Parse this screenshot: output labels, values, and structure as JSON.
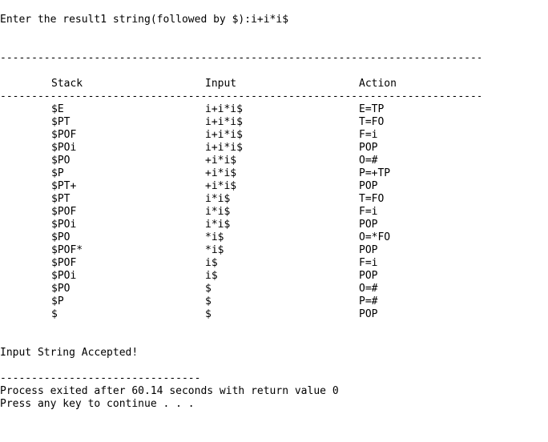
{
  "prompt_line": "Enter the result1 string(followed by $):i+i*i$",
  "separator_long": "-----------------------------------------------------------------------------------",
  "separator_short": "--------------------------------",
  "table": {
    "headers": {
      "stack": "Stack",
      "input": "Input",
      "action": "Action"
    },
    "rows": [
      {
        "stack": "$E",
        "input": "i+i*i$",
        "action": "E=TP"
      },
      {
        "stack": "$PT",
        "input": "i+i*i$",
        "action": "T=FO"
      },
      {
        "stack": "$POF",
        "input": "i+i*i$",
        "action": "F=i"
      },
      {
        "stack": "$POi",
        "input": "i+i*i$",
        "action": "POP"
      },
      {
        "stack": "$PO",
        "input": "+i*i$",
        "action": "O=#"
      },
      {
        "stack": "$P",
        "input": "+i*i$",
        "action": "P=+TP"
      },
      {
        "stack": "$PT+",
        "input": "+i*i$",
        "action": "POP"
      },
      {
        "stack": "$PT",
        "input": "i*i$",
        "action": "T=FO"
      },
      {
        "stack": "$POF",
        "input": "i*i$",
        "action": "F=i"
      },
      {
        "stack": "$POi",
        "input": "i*i$",
        "action": "POP"
      },
      {
        "stack": "$PO",
        "input": "*i$",
        "action": "O=*FO"
      },
      {
        "stack": "$POF*",
        "input": "*i$",
        "action": "POP"
      },
      {
        "stack": "$POF",
        "input": "i$",
        "action": "F=i"
      },
      {
        "stack": "$POi",
        "input": "i$",
        "action": "POP"
      },
      {
        "stack": "$PO",
        "input": "$",
        "action": "O=#"
      },
      {
        "stack": "$P",
        "input": "$",
        "action": "P=#"
      },
      {
        "stack": "$",
        "input": "$",
        "action": "POP"
      }
    ]
  },
  "result_line": "Input String Accepted!",
  "process_line": "Process exited after 60.14 seconds with return value 0",
  "continue_line": "Press any key to continue . . ."
}
